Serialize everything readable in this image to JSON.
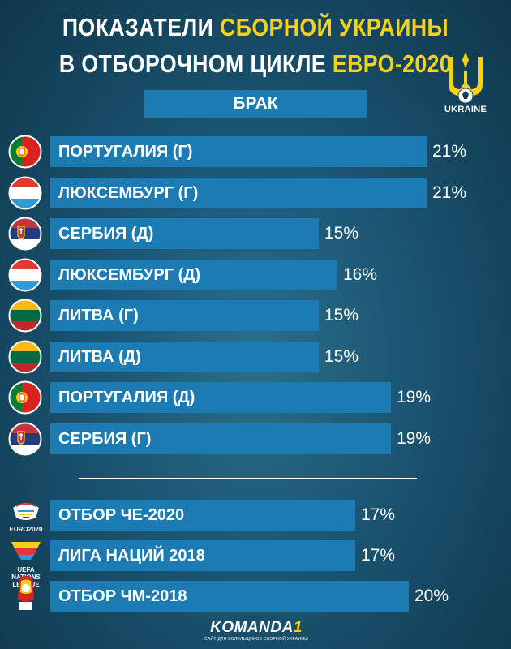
{
  "title": {
    "line1_white": "ПОКАЗАТЕЛИ",
    "line1_yellow": "СБОРНОЙ УКРАИНЫ",
    "line2_white": "В ОТБОРОЧНОМ ЦИКЛЕ",
    "line2_yellow": "ЕВРО-2020"
  },
  "subtitle": "БРАК",
  "crest_label": "UKRAINE",
  "colors": {
    "bar": "#1d7bb4",
    "highlight": "#f4d21a",
    "background": "#1d5a78"
  },
  "chart_data": {
    "type": "bar",
    "orientation": "horizontal",
    "title": "БРАК",
    "value_format": "percent",
    "xlim": [
      0,
      21
    ],
    "bars": [
      {
        "label": "ПОРТУГАЛИЯ (Г)",
        "value": 21,
        "value_label": "21%",
        "icon": "portugal-flag-icon"
      },
      {
        "label": "ЛЮКСЕМБУРГ (Г)",
        "value": 21,
        "value_label": "21%",
        "icon": "luxembourg-flag-icon"
      },
      {
        "label": "СЕРБИЯ (Д)",
        "value": 15,
        "value_label": "15%",
        "icon": "serbia-flag-icon"
      },
      {
        "label": "ЛЮКСЕМБУРГ (Д)",
        "value": 16,
        "value_label": "16%",
        "icon": "luxembourg-flag-icon"
      },
      {
        "label": "ЛИТВА (Г)",
        "value": 15,
        "value_label": "15%",
        "icon": "lithuania-flag-icon"
      },
      {
        "label": "ЛИТВА (Д)",
        "value": 15,
        "value_label": "15%",
        "icon": "lithuania-flag-icon"
      },
      {
        "label": "ПОРТУГАЛИЯ (Д)",
        "value": 19,
        "value_label": "19%",
        "icon": "portugal-flag-icon"
      },
      {
        "label": "СЕРБИЯ (Г)",
        "value": 19,
        "value_label": "19%",
        "icon": "serbia-flag-icon"
      }
    ],
    "summary_bars": [
      {
        "label": "ОТБОР ЧЕ-2020",
        "value": 17,
        "value_label": "17%",
        "icon": "euro2020-logo-icon",
        "icon_text": "EURO2020"
      },
      {
        "label": "ЛИГА НАЦИЙ 2018",
        "value": 17,
        "value_label": "17%",
        "icon": "nations-league-logo-icon",
        "icon_text": "UEFA NATIONS LEAGUE"
      },
      {
        "label": "ОТБОР ЧМ-2018",
        "value": 20,
        "value_label": "20%",
        "icon": "world-cup-2018-logo-icon",
        "icon_text": ""
      }
    ]
  },
  "footer": {
    "brand": "KOMANDA",
    "brand_number": "1",
    "tagline": "САЙТ ДЛЯ БОЛЕЛЬЩИКОВ СБОРНОЙ УКРАИНЫ"
  }
}
